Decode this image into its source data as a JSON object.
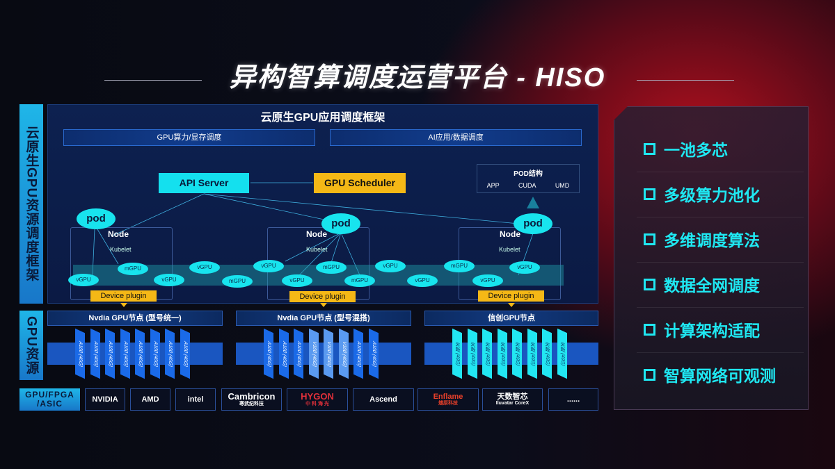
{
  "title": "异构智算调度运营平台 - HISO",
  "side_labels": {
    "top": "云原生GPU资源调度框架",
    "bottom": "GPU资源"
  },
  "framework": {
    "title": "云原生GPU应用调度框架",
    "bars": [
      "GPU算力/显存调度",
      "AI应用/数据调度"
    ]
  },
  "diagram": {
    "api_server": "API Server",
    "gpu_scheduler": "GPU Scheduler",
    "pod_structure": {
      "title": "POD结构",
      "items": [
        "APP",
        "CUDA",
        "UMD"
      ]
    },
    "pod": "pod",
    "node": "Node",
    "kubelet": "Kubelet",
    "device_plugin": "Device plugin",
    "units": [
      "vGPU",
      "mGPU",
      "vGPU",
      "vGPU",
      "mGPU",
      "vGPU",
      "vGPU",
      "mGPU",
      "mGPU",
      "vGPU",
      "vGPU",
      "mGPU",
      "vGPU",
      "vGPU"
    ]
  },
  "gpu_nodes": [
    {
      "title": "Nvdia GPU节点 (型号统一)",
      "chips": [
        "A100 (40G)",
        "A100 (40G)",
        "A100 (40G)",
        "A100 (40G)",
        "A100 (40G)",
        "A100 (40G)",
        "A100 (40G)",
        "A100 (40G)"
      ]
    },
    {
      "title": "Nvdia GPU节点 (型号混搭)",
      "chips": [
        "A100 (40G)",
        "A100 (40G)",
        "A100 (40G)",
        "V100 (40G)",
        "V100 (40G)",
        "V100 (40G)",
        "A100 (40G)",
        "A100 (40G)"
      ]
    },
    {
      "title": "信创GPU节点",
      "chips": [
        "天数 (40G)",
        "天数 (40G)",
        "天数 (40G)",
        "天数 (40G)",
        "天数 (40G)",
        "天数 (40G)",
        "天数 (40G)",
        "天数 (40G)"
      ]
    }
  ],
  "vendors": {
    "label": "GPU/FPGA /ASIC",
    "items": [
      [
        "NVIDIA"
      ],
      [
        "AMD"
      ],
      [
        "intel"
      ],
      [
        "Cambricon",
        "寒武纪科技"
      ],
      [
        "HYGON",
        "中 科 海 光"
      ],
      [
        "Ascend"
      ],
      [
        "Enflame",
        "燧原科技"
      ],
      [
        "天数智芯",
        "Iluvatar CoreX"
      ],
      [
        "......"
      ]
    ]
  },
  "features": [
    "一池多芯",
    "多级算力池化",
    "多维调度算法",
    "数据全网调度",
    "计算架构适配",
    "智算网络可观测"
  ],
  "colors": {
    "cyan": "#14e0ee",
    "yellow": "#f5b816",
    "blue": "#1a56c0",
    "red": "#b0101e"
  }
}
